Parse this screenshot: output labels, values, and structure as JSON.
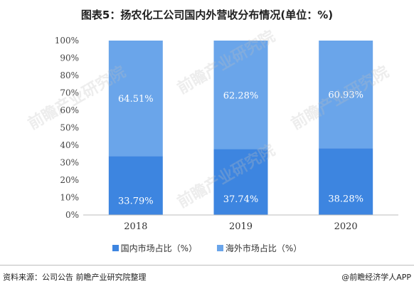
{
  "title": "图表5：扬农化工公司国内外营收分布情况(单位：%)",
  "chart_data": {
    "type": "bar",
    "stacked": true,
    "percent": true,
    "categories": [
      "2018",
      "2019",
      "2020"
    ],
    "series": [
      {
        "name": "国内市场占比（%）",
        "values": [
          33.79,
          37.74,
          38.28
        ],
        "color": "#3d85e0",
        "labels": [
          "33.79%",
          "37.74%",
          "38.28%"
        ]
      },
      {
        "name": "海外市场占比（%）",
        "values": [
          64.51,
          62.28,
          60.93
        ],
        "color": "#6aa5ea",
        "labels": [
          "64.51%",
          "62.28%",
          "60.93%"
        ]
      }
    ],
    "y_ticks": [
      "0%",
      "10%",
      "20%",
      "30%",
      "40%",
      "50%",
      "60%",
      "70%",
      "80%",
      "90%",
      "100%"
    ],
    "ylim": [
      0,
      100
    ],
    "legend_position": "bottom"
  },
  "legend": {
    "item1": "国内市场占比（%）",
    "item2": "海外市场占比（%）"
  },
  "source": {
    "left": "资料来源：公司公告 前瞻产业研究院整理",
    "right": "@前瞻经济学人APP"
  },
  "watermark": "前瞻产业研究院"
}
